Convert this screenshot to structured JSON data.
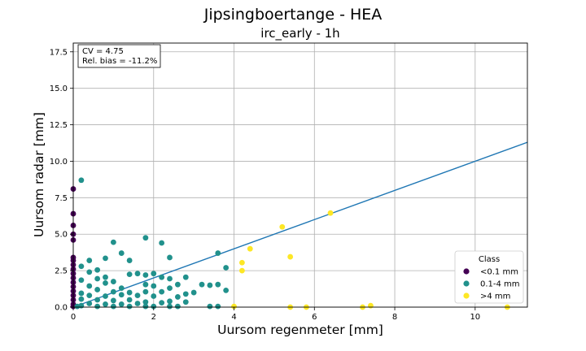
{
  "chart_data": {
    "type": "scatter",
    "title": "Jipsingboertange - HEA",
    "subtitle": "irc_early - 1h",
    "xlabel": "Uursom regenmeter [mm]",
    "ylabel": "Uursom radar [mm]",
    "xlim": [
      0,
      11.3
    ],
    "ylim": [
      0,
      18.1
    ],
    "xticks": [
      0,
      2,
      4,
      6,
      8,
      10
    ],
    "yticks": [
      0,
      2.5,
      5.0,
      7.5,
      10.0,
      12.5,
      15.0,
      17.5
    ],
    "xtick_labels": [
      "0",
      "2",
      "4",
      "6",
      "8",
      "10"
    ],
    "ytick_labels": [
      "0.0",
      "2.5",
      "5.0",
      "7.5",
      "10.0",
      "12.5",
      "15.0",
      "17.5"
    ],
    "grid": true,
    "stats": [
      "CV = 4.75",
      "Rel. bias = -11.2%"
    ],
    "fit_line": {
      "x": [
        0,
        11.3
      ],
      "y": [
        0,
        11.3
      ]
    },
    "legend": {
      "title": "Class",
      "placement": "bottom-right"
    },
    "series": [
      {
        "name": "<0.1 mm",
        "color": "#440154",
        "points": [
          [
            0,
            8.1
          ],
          [
            0,
            6.4
          ],
          [
            0,
            5.6
          ],
          [
            0,
            5.0
          ],
          [
            0,
            4.6
          ],
          [
            0,
            3.4
          ],
          [
            0,
            3.2
          ],
          [
            0,
            2.9
          ],
          [
            0,
            2.6
          ],
          [
            0,
            2.3
          ],
          [
            0,
            2.0
          ],
          [
            0,
            1.7
          ],
          [
            0,
            1.4
          ],
          [
            0,
            1.1
          ],
          [
            0,
            0.8
          ],
          [
            0,
            0.5
          ],
          [
            0,
            0.2
          ],
          [
            0,
            0.05
          ]
        ]
      },
      {
        "name": "0.1-4 mm",
        "color": "#21918c",
        "points": [
          [
            0.2,
            8.7
          ],
          [
            1.0,
            4.45
          ],
          [
            1.8,
            4.75
          ],
          [
            2.2,
            4.4
          ],
          [
            1.2,
            3.7
          ],
          [
            2.4,
            3.4
          ],
          [
            0.8,
            3.35
          ],
          [
            1.4,
            3.2
          ],
          [
            0.4,
            3.2
          ],
          [
            3.6,
            3.7
          ],
          [
            3.8,
            2.7
          ],
          [
            0.2,
            2.8
          ],
          [
            0.6,
            2.55
          ],
          [
            0.4,
            2.4
          ],
          [
            1.4,
            2.25
          ],
          [
            1.6,
            2.3
          ],
          [
            2.0,
            2.3
          ],
          [
            1.8,
            2.2
          ],
          [
            0.8,
            2.05
          ],
          [
            2.2,
            2.05
          ],
          [
            2.8,
            2.05
          ],
          [
            0.6,
            1.95
          ],
          [
            2.4,
            1.95
          ],
          [
            0.2,
            1.85
          ],
          [
            1.0,
            1.75
          ],
          [
            0.8,
            1.65
          ],
          [
            1.8,
            1.55
          ],
          [
            2.6,
            1.55
          ],
          [
            3.2,
            1.55
          ],
          [
            3.4,
            1.5
          ],
          [
            3.6,
            1.55
          ],
          [
            0.4,
            1.45
          ],
          [
            1.2,
            1.3
          ],
          [
            2.0,
            1.45
          ],
          [
            2.4,
            1.3
          ],
          [
            3.8,
            1.15
          ],
          [
            0.6,
            1.2
          ],
          [
            1.0,
            1.05
          ],
          [
            1.4,
            1.0
          ],
          [
            1.8,
            1.05
          ],
          [
            2.2,
            1.05
          ],
          [
            2.8,
            0.9
          ],
          [
            3.0,
            1.0
          ],
          [
            0.2,
            0.95
          ],
          [
            0.4,
            0.8
          ],
          [
            0.8,
            0.75
          ],
          [
            1.2,
            0.85
          ],
          [
            1.6,
            0.8
          ],
          [
            2.0,
            0.75
          ],
          [
            2.6,
            0.7
          ],
          [
            0.2,
            0.55
          ],
          [
            0.6,
            0.5
          ],
          [
            1.0,
            0.45
          ],
          [
            1.4,
            0.5
          ],
          [
            1.8,
            0.35
          ],
          [
            2.4,
            0.4
          ],
          [
            2.8,
            0.35
          ],
          [
            0.4,
            0.25
          ],
          [
            0.8,
            0.2
          ],
          [
            1.2,
            0.2
          ],
          [
            1.6,
            0.25
          ],
          [
            2.2,
            0.3
          ],
          [
            0.2,
            0.1
          ],
          [
            0.6,
            0.05
          ],
          [
            1.0,
            0.05
          ],
          [
            1.4,
            0.05
          ],
          [
            1.8,
            0.05
          ],
          [
            2.0,
            0.05
          ],
          [
            2.4,
            0.05
          ],
          [
            2.6,
            0.05
          ],
          [
            3.4,
            0.05
          ],
          [
            3.6,
            0.05
          ],
          [
            0.1,
            0.05
          ]
        ]
      },
      {
        "name": ">4 mm",
        "color": "#fde725",
        "points": [
          [
            6.4,
            6.45
          ],
          [
            5.2,
            5.5
          ],
          [
            4.4,
            4.0
          ],
          [
            5.4,
            3.45
          ],
          [
            4.2,
            3.05
          ],
          [
            4.2,
            2.5
          ],
          [
            4.0,
            0.05
          ],
          [
            5.4,
            0.0
          ],
          [
            5.8,
            0.0
          ],
          [
            7.2,
            0.0
          ],
          [
            7.4,
            0.1
          ],
          [
            10.8,
            0.0
          ]
        ]
      }
    ]
  }
}
